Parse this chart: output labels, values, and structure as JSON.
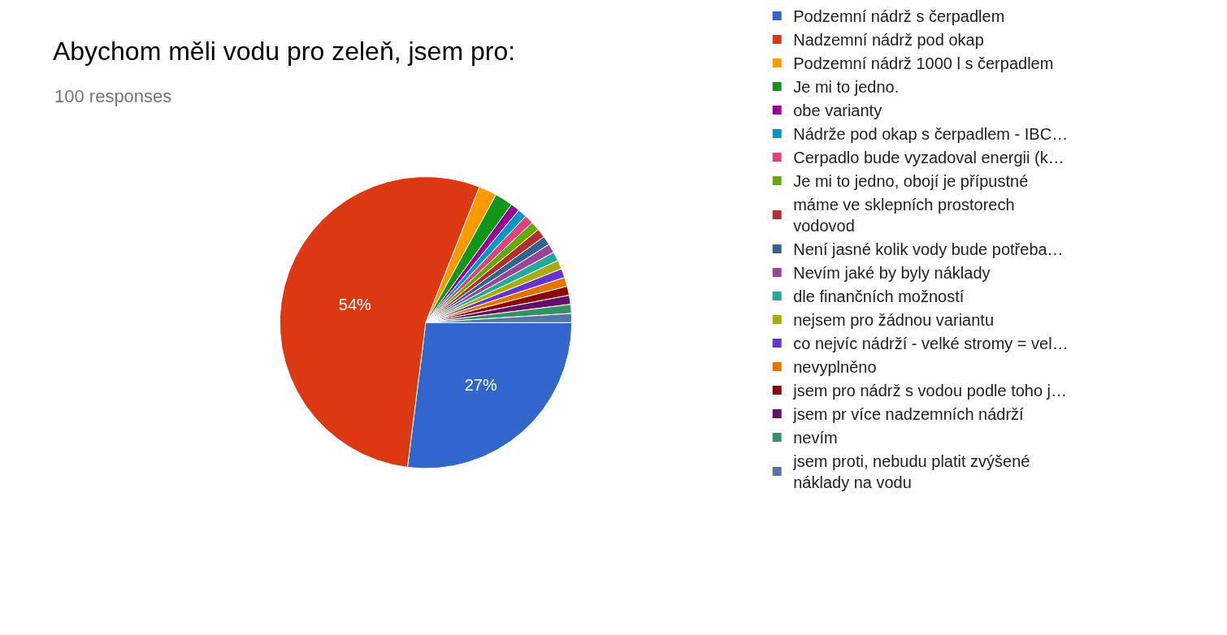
{
  "chart_data": {
    "type": "pie",
    "title": "Abychom měli vodu pro zeleň, jsem pro:",
    "subtitle": "100 responses",
    "categories": [
      "Podzemní nádrž s čerpadlem",
      "Nadzemní nádrž pod okap",
      "Podzemní nádrž 1000 l s čerpadlem",
      "Je mi to jedno.",
      "obe varianty",
      "Nádrže pod okap s čerpadlem - IBC…",
      "Cerpadlo bude vyzadoval energii (k…",
      "Je mi to jedno, obojí je přípustné",
      "máme ve sklepních prostorech vodovod",
      "Není jasné kolik vody bude potřeba…",
      "Nevím jaké by byly náklady",
      "dle finančních možností",
      "nejsem pro žádnou variantu",
      "co nejvíc nádrží - velké stromy = vel…",
      "nevyplněno",
      "jsem pro nádrž s vodou podle toho j…",
      "jsem pr více nadzemních nádrží",
      "nevím",
      "jsem proti, nebudu platit zvýšené náklady na vodu"
    ],
    "values": [
      27,
      54,
      2,
      2,
      1,
      1,
      1,
      1,
      1,
      1,
      1,
      1,
      1,
      1,
      1,
      1,
      1,
      1,
      1
    ],
    "colors": [
      "#3366cc",
      "#dc3912",
      "#ff9900",
      "#109618",
      "#990099",
      "#0099c6",
      "#dd4477",
      "#66aa00",
      "#b82e2e",
      "#316395",
      "#994499",
      "#22aa99",
      "#aaaa11",
      "#6633cc",
      "#e67300",
      "#8b0707",
      "#651067",
      "#329262",
      "#5574a6"
    ],
    "value_labels": [
      "27%",
      "54%",
      null,
      null,
      null,
      null,
      null,
      null,
      null,
      null,
      null,
      null,
      null,
      null,
      null,
      null,
      null,
      null,
      null
    ],
    "legend": "right"
  }
}
